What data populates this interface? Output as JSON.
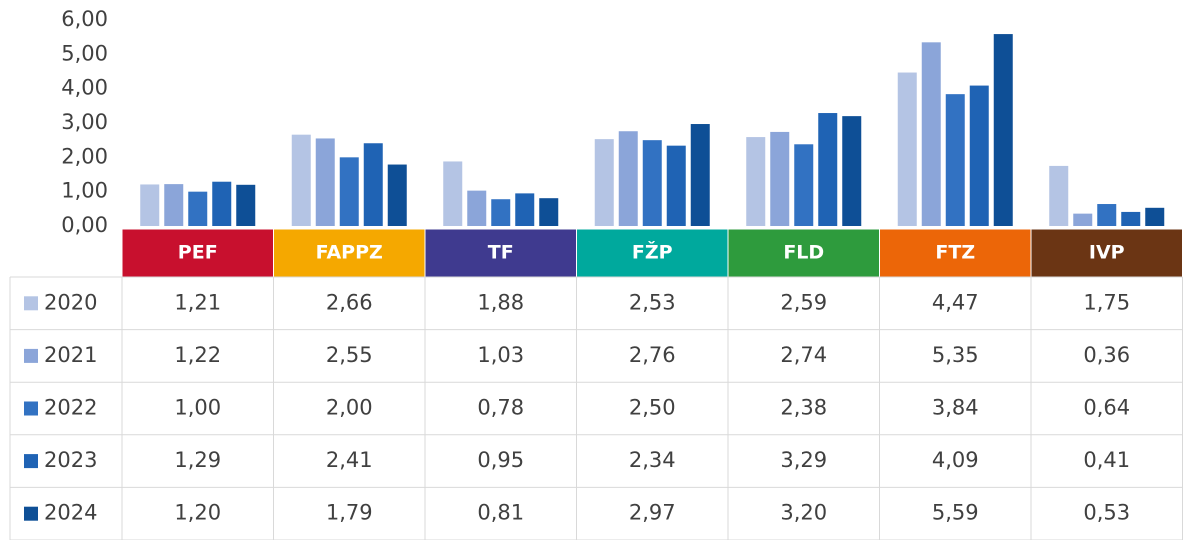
{
  "chart_data": {
    "type": "bar",
    "categories": [
      "PEF",
      "FAPPZ",
      "TF",
      "FŽP",
      "FLD",
      "FTZ",
      "IVP"
    ],
    "category_colors": [
      "#c8102e",
      "#f5a800",
      "#3f3a8f",
      "#00a99d",
      "#2e9b3d",
      "#ec6608",
      "#6b3514"
    ],
    "series": [
      {
        "name": "2020",
        "color": "#b4c4e4",
        "values": [
          1.21,
          2.66,
          1.88,
          2.53,
          2.59,
          4.47,
          1.75
        ],
        "value_labels": [
          "1,21",
          "2,66",
          "1,88",
          "2,53",
          "2,59",
          "4,47",
          "1,75"
        ]
      },
      {
        "name": "2021",
        "color": "#8ba5d9",
        "values": [
          1.22,
          2.55,
          1.03,
          2.76,
          2.74,
          5.35,
          0.36
        ],
        "value_labels": [
          "1,22",
          "2,55",
          "1,03",
          "2,76",
          "2,74",
          "5,35",
          "0,36"
        ]
      },
      {
        "name": "2022",
        "color": "#3272c2",
        "values": [
          1.0,
          2.0,
          0.78,
          2.5,
          2.38,
          3.84,
          0.64
        ],
        "value_labels": [
          "1,00",
          "2,00",
          "0,78",
          "2,50",
          "2,38",
          "3,84",
          "0,64"
        ]
      },
      {
        "name": "2023",
        "color": "#1f63b4",
        "values": [
          1.29,
          2.41,
          0.95,
          2.34,
          3.29,
          4.09,
          0.41
        ],
        "value_labels": [
          "1,29",
          "2,41",
          "0,95",
          "2,34",
          "3,29",
          "4,09",
          "0,41"
        ]
      },
      {
        "name": "2024",
        "color": "#0e4f96",
        "values": [
          1.2,
          1.79,
          0.81,
          2.97,
          3.2,
          5.59,
          0.53
        ],
        "value_labels": [
          "1,20",
          "1,79",
          "0,81",
          "2,97",
          "3,20",
          "5,59",
          "0,53"
        ]
      }
    ],
    "ylim": [
      0,
      6
    ],
    "yticks": [
      {
        "value": 0,
        "label": "0,00"
      },
      {
        "value": 1,
        "label": "1,00"
      },
      {
        "value": 2,
        "label": "2,00"
      },
      {
        "value": 3,
        "label": "3,00"
      },
      {
        "value": 4,
        "label": "4,00"
      },
      {
        "value": 5,
        "label": "5,00"
      },
      {
        "value": 6,
        "label": "6,00"
      }
    ],
    "grid": false
  }
}
